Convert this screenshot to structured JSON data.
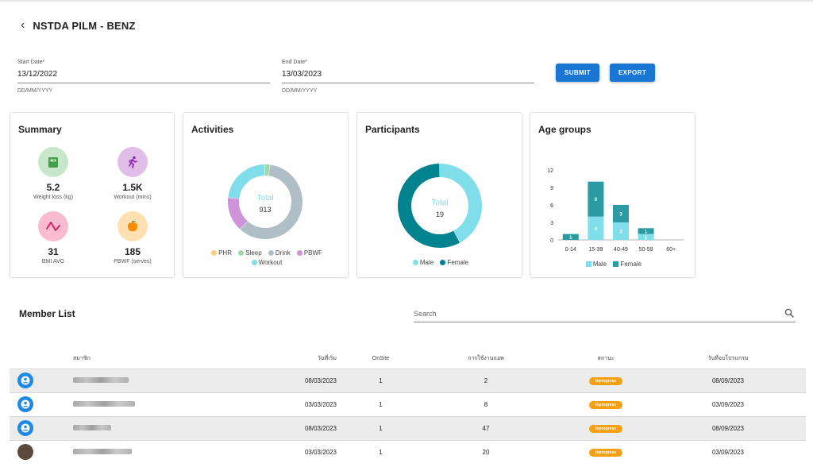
{
  "header": {
    "title": "NSTDA PILM - BENZ"
  },
  "filters": {
    "start": {
      "label": "Start Date*",
      "value": "13/12/2022",
      "hint": "DD/MM/YYYY"
    },
    "end": {
      "label": "End Date*",
      "value": "13/03/2023",
      "hint": "DD/MM/YYYY"
    },
    "submit_label": "SUBMIT",
    "export_label": "EXPORT"
  },
  "summary": {
    "title": "Summary",
    "items": [
      {
        "value": "5.2",
        "label": "Weight loss (kg)",
        "icon": "scale-icon",
        "bg": "#c8e6c9",
        "fg": "#43a047"
      },
      {
        "value": "1.5K",
        "label": "Workout (mins)",
        "icon": "runner-icon",
        "bg": "#e1bee7",
        "fg": "#8e24aa"
      },
      {
        "value": "31",
        "label": "BMI AVG",
        "icon": "pulse-icon",
        "bg": "#f8bbd0",
        "fg": "#d81b60"
      },
      {
        "value": "185",
        "label": "PBWF (serves)",
        "icon": "apple-icon",
        "bg": "#ffe0b2",
        "fg": "#fb8c00"
      }
    ]
  },
  "activities": {
    "title": "Activities",
    "center_label": "Total",
    "center_value": "913",
    "legend": [
      {
        "name": "PHR",
        "color": "#ffcc80"
      },
      {
        "name": "Sleep",
        "color": "#a5d6a7"
      },
      {
        "name": "Drink",
        "color": "#b0bec5"
      },
      {
        "name": "PBWF",
        "color": "#ce93d8"
      },
      {
        "name": "Workout",
        "color": "#80deea"
      }
    ]
  },
  "participants": {
    "title": "Participants",
    "center_label": "Total",
    "center_value": "19",
    "legend": [
      {
        "name": "Male",
        "color": "#80deea"
      },
      {
        "name": "Female",
        "color": "#00838f"
      }
    ]
  },
  "age_groups": {
    "title": "Age groups",
    "legend": [
      {
        "name": "Male",
        "color": "#80deea"
      },
      {
        "name": "Female",
        "color": "#2a9aa3"
      }
    ]
  },
  "chart_data": [
    {
      "type": "pie",
      "title": "Activities",
      "categories": [
        "PHR",
        "Sleep",
        "Drink",
        "PBWF",
        "Workout"
      ],
      "values": [
        0,
        20,
        545,
        137,
        211
      ],
      "total": 913
    },
    {
      "type": "pie",
      "title": "Participants",
      "categories": [
        "Male",
        "Female"
      ],
      "values": [
        8,
        11
      ],
      "total": 19
    },
    {
      "type": "bar",
      "title": "Age groups",
      "stacked": true,
      "categories": [
        "0-14",
        "15-39",
        "40-49",
        "50-59",
        "60+"
      ],
      "series": [
        {
          "name": "Male",
          "values": [
            0,
            4,
            3,
            1,
            0
          ]
        },
        {
          "name": "Female",
          "values": [
            1,
            6,
            3,
            1,
            0
          ]
        }
      ],
      "yticks": [
        0,
        3,
        6,
        9,
        12
      ],
      "ylim": [
        0,
        12
      ],
      "grid": false,
      "legend": "bottom"
    }
  ],
  "members": {
    "title": "Member List",
    "search_placeholder": "Search",
    "columns": [
      "สมาชิก",
      "วันที่เริ่ม",
      "OnSite",
      "การใช้งานแอพ",
      "สถานะ",
      "วันที่จบโปรแกรม"
    ],
    "rows": [
      {
        "avatar": "default",
        "start": "08/03/2023",
        "onsite": "1",
        "usage": "2",
        "status": "Inprogress",
        "end": "08/09/2023"
      },
      {
        "avatar": "default",
        "start": "03/03/2023",
        "onsite": "1",
        "usage": "8",
        "status": "Inprogress",
        "end": "03/09/2023"
      },
      {
        "avatar": "default",
        "start": "08/03/2023",
        "onsite": "1",
        "usage": "47",
        "status": "Inprogress",
        "end": "08/09/2023"
      },
      {
        "avatar": "photo",
        "start": "03/03/2023",
        "onsite": "1",
        "usage": "20",
        "status": "Inprogress",
        "end": "03/09/2023"
      }
    ]
  }
}
